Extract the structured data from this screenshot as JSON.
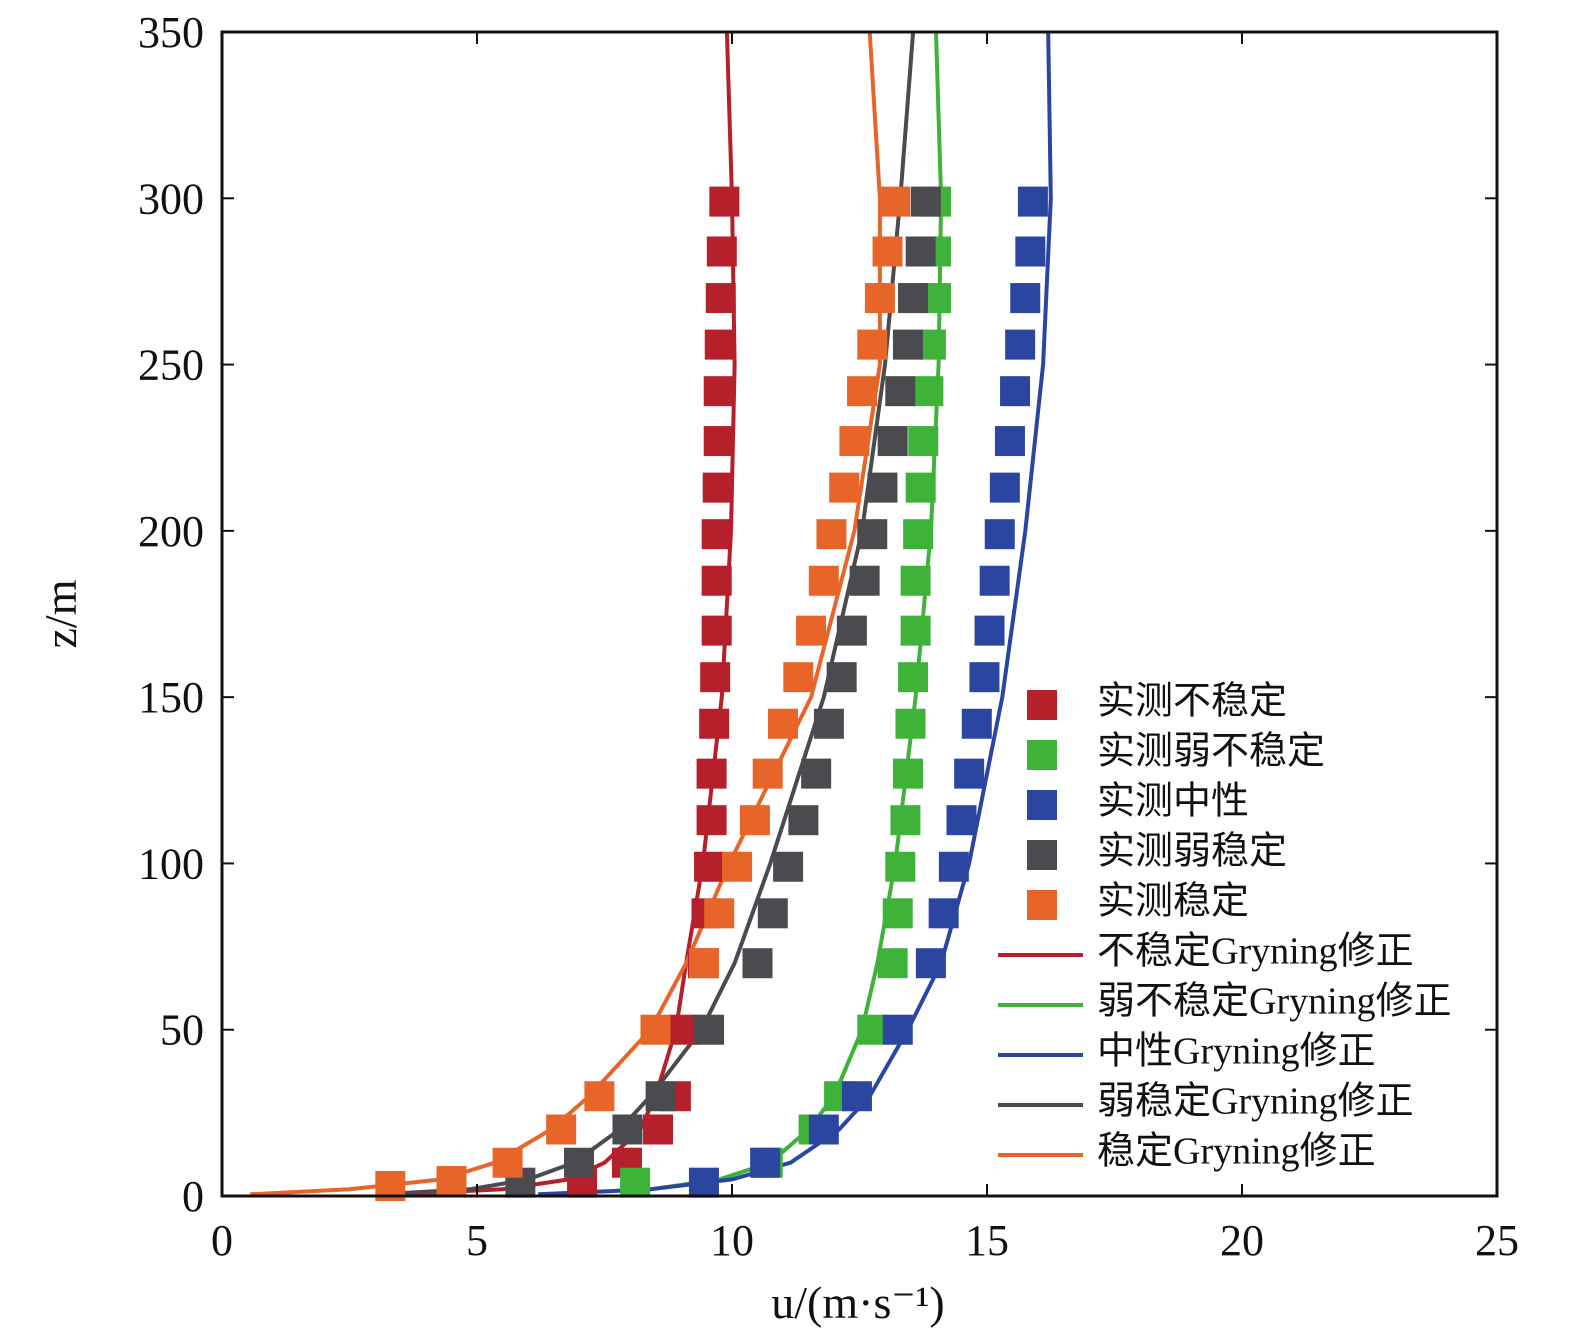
{
  "chart_data": {
    "type": "scatter",
    "x_label": "u/(m·s⁻¹)",
    "y_label": "z/m",
    "xlim": [
      0,
      25
    ],
    "xticks": [
      0,
      5,
      10,
      15,
      20,
      25
    ],
    "ylim": [
      0,
      350
    ],
    "yticks": [
      0,
      50,
      100,
      150,
      200,
      250,
      300,
      350
    ],
    "grid": false,
    "legend": "lower right",
    "series": [
      {
        "name": "实测不稳定",
        "color": "#b5202a",
        "kind": "marker",
        "x": [
          7.06,
          7.94,
          8.55,
          8.9,
          9.04,
          9.43,
          9.5,
          9.55,
          9.6,
          9.6,
          9.65,
          9.67,
          9.7,
          9.7,
          9.7,
          9.72,
          9.74,
          9.74,
          9.76,
          9.78,
          9.8,
          9.85
        ],
        "y": [
          4,
          10,
          20,
          30,
          50,
          70,
          85,
          99,
          113,
          127,
          142,
          156,
          170,
          185,
          199,
          213,
          227,
          242,
          256,
          270,
          284,
          299
        ]
      },
      {
        "name": "实测弱不稳定",
        "color": "#3fb23a",
        "kind": "marker",
        "x": [
          8.1,
          10.7,
          11.6,
          12.1,
          12.75,
          13.15,
          13.25,
          13.3,
          13.4,
          13.45,
          13.5,
          13.55,
          13.6,
          13.6,
          13.65,
          13.7,
          13.75,
          13.85,
          13.9,
          14.0,
          14.0,
          14.0
        ],
        "y": [
          4,
          10,
          20,
          30,
          50,
          70,
          85,
          99,
          113,
          127,
          142,
          156,
          170,
          185,
          199,
          213,
          227,
          242,
          256,
          270,
          284,
          299
        ]
      },
      {
        "name": "实测中性",
        "color": "#2a46a0",
        "kind": "marker",
        "x": [
          9.45,
          10.65,
          11.8,
          12.45,
          13.25,
          13.9,
          14.15,
          14.35,
          14.5,
          14.65,
          14.8,
          14.95,
          15.05,
          15.15,
          15.25,
          15.35,
          15.45,
          15.55,
          15.65,
          15.75,
          15.85,
          15.9
        ],
        "y": [
          4,
          10,
          20,
          30,
          50,
          70,
          85,
          99,
          113,
          127,
          142,
          156,
          170,
          185,
          199,
          213,
          227,
          242,
          256,
          270,
          284,
          299
        ]
      },
      {
        "name": "实测弱稳定",
        "color": "#4a4a4f",
        "kind": "marker",
        "x": [
          5.85,
          7.0,
          7.95,
          8.6,
          9.55,
          10.5,
          10.8,
          11.1,
          11.4,
          11.65,
          11.9,
          12.15,
          12.35,
          12.6,
          12.75,
          12.95,
          13.15,
          13.3,
          13.45,
          13.55,
          13.7,
          13.8
        ],
        "y": [
          4,
          10,
          20,
          30,
          50,
          70,
          85,
          99,
          113,
          127,
          142,
          156,
          170,
          185,
          199,
          213,
          227,
          242,
          256,
          270,
          284,
          299
        ]
      },
      {
        "name": "实测稳定",
        "color": "#e8652a",
        "kind": "marker",
        "x": [
          3.3,
          4.5,
          5.6,
          6.65,
          7.4,
          8.5,
          9.45,
          9.75,
          10.1,
          10.45,
          10.7,
          11.0,
          11.3,
          11.55,
          11.8,
          11.95,
          12.2,
          12.4,
          12.55,
          12.75,
          12.9,
          13.05,
          13.2
        ],
        "y": [
          3,
          4.5,
          10,
          20,
          30,
          50,
          70,
          85,
          99,
          113,
          127,
          142,
          156,
          170,
          185,
          199,
          213,
          227,
          242,
          256,
          270,
          284,
          299
        ]
      },
      {
        "name": "不稳定Gryning修正",
        "color": "#b5202a",
        "kind": "line",
        "x": [
          3.5,
          5.5,
          6.8,
          7.5,
          8.2,
          8.5,
          8.9,
          9.1,
          9.43,
          9.8,
          9.98,
          10.05,
          10.0,
          9.9
        ],
        "y": [
          0.5,
          2,
          5,
          10,
          20,
          30,
          50,
          70,
          100,
          150,
          200,
          250,
          300,
          350
        ]
      },
      {
        "name": "弱不稳定Gryning修正",
        "color": "#3fb23a",
        "kind": "line",
        "x": [
          7.9,
          8.4,
          9.75,
          10.75,
          11.5,
          12.0,
          12.55,
          12.85,
          13.2,
          13.6,
          13.9,
          14.05,
          14.1,
          14.0
        ],
        "y": [
          0.5,
          2,
          5,
          10,
          20,
          30,
          50,
          70,
          100,
          150,
          200,
          250,
          300,
          350
        ]
      },
      {
        "name": "中性Gryning修正",
        "color": "#2a46a0",
        "kind": "line",
        "x": [
          6.2,
          8.4,
          10.0,
          11.15,
          12.1,
          12.7,
          13.45,
          14.1,
          14.65,
          15.3,
          15.75,
          16.1,
          16.25,
          16.2
        ],
        "y": [
          0.5,
          2,
          5,
          10,
          20,
          30,
          50,
          70,
          100,
          150,
          200,
          250,
          300,
          350
        ]
      },
      {
        "name": "弱稳定Gryning修正",
        "color": "#4a4a4f",
        "kind": "line",
        "x": [
          3.1,
          4.85,
          6.0,
          6.9,
          7.8,
          8.4,
          9.4,
          10.05,
          10.75,
          11.8,
          12.55,
          13.0,
          13.3,
          13.55
        ],
        "y": [
          0.5,
          2,
          5,
          10,
          20,
          30,
          50,
          70,
          100,
          150,
          200,
          250,
          300,
          350
        ]
      },
      {
        "name": "稳定Gryning修正",
        "color": "#e8652a",
        "kind": "line",
        "x": [
          0.55,
          2.5,
          4.3,
          5.35,
          6.45,
          7.2,
          8.4,
          9.1,
          9.95,
          11.55,
          12.4,
          12.9,
          12.9,
          12.7
        ],
        "y": [
          0.5,
          2,
          5,
          10,
          20,
          30,
          50,
          70,
          100,
          150,
          200,
          250,
          300,
          350
        ]
      }
    ]
  }
}
